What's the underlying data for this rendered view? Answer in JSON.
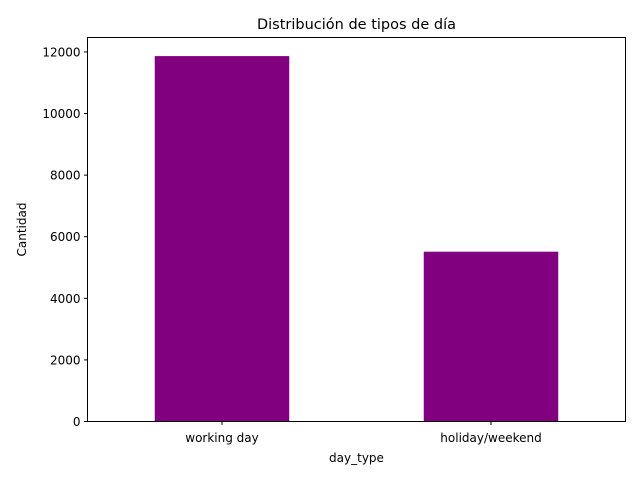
{
  "chart_data": {
    "type": "bar",
    "title": "Distribución de tipos de día",
    "xlabel": "day_type",
    "ylabel": "Cantidad",
    "categories": [
      "working day",
      "holiday/weekend"
    ],
    "values": [
      11865,
      5514
    ],
    "ylim": [
      0,
      12469
    ],
    "yticks": [
      0,
      2000,
      4000,
      6000,
      8000,
      10000,
      12000
    ],
    "bar_color": "#800080",
    "grid": false,
    "legend": "none"
  }
}
